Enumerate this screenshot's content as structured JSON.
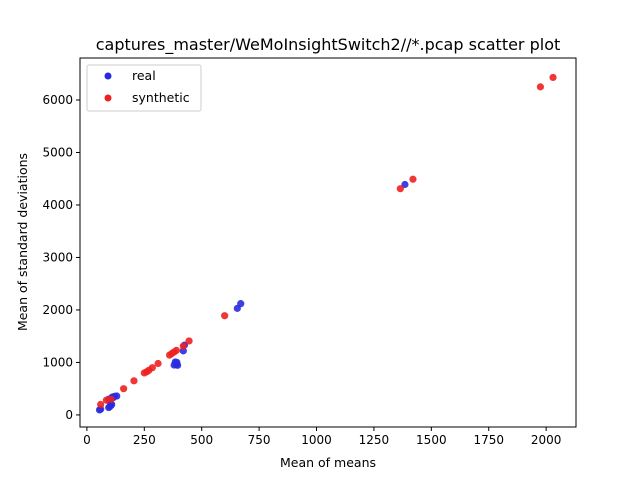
{
  "chart_data": {
    "type": "scatter",
    "title": "captures_master/WeMoInsightSwitch2//*.pcap scatter plot",
    "xlabel": "Mean of means",
    "ylabel": "Mean of standard deviations",
    "xlim": [
      -30,
      2130
    ],
    "ylim": [
      -230,
      6800
    ],
    "xticks": [
      0,
      250,
      500,
      750,
      1000,
      1250,
      1500,
      1750,
      2000
    ],
    "yticks": [
      0,
      1000,
      2000,
      3000,
      4000,
      5000,
      6000
    ],
    "grid": false,
    "legend_position": "top-left",
    "series": [
      {
        "name": "real",
        "color": "#2a2ae0",
        "points": [
          [
            55,
            95
          ],
          [
            60,
            110
          ],
          [
            95,
            140
          ],
          [
            100,
            160
          ],
          [
            105,
            180
          ],
          [
            108,
            200
          ],
          [
            100,
            260
          ],
          [
            95,
            300
          ],
          [
            110,
            340
          ],
          [
            115,
            330
          ],
          [
            120,
            355
          ],
          [
            130,
            360
          ],
          [
            380,
            950
          ],
          [
            390,
            960
          ],
          [
            395,
            945
          ],
          [
            385,
            1010
          ],
          [
            392,
            1000
          ],
          [
            420,
            1220
          ],
          [
            425,
            1330
          ],
          [
            655,
            2030
          ],
          [
            670,
            2120
          ],
          [
            1385,
            4390
          ]
        ]
      },
      {
        "name": "synthetic",
        "color": "#ee2020",
        "points": [
          [
            60,
            200
          ],
          [
            85,
            280
          ],
          [
            105,
            300
          ],
          [
            160,
            500
          ],
          [
            205,
            650
          ],
          [
            250,
            800
          ],
          [
            260,
            820
          ],
          [
            270,
            850
          ],
          [
            285,
            900
          ],
          [
            310,
            980
          ],
          [
            360,
            1140
          ],
          [
            370,
            1170
          ],
          [
            380,
            1200
          ],
          [
            390,
            1230
          ],
          [
            420,
            1310
          ],
          [
            445,
            1410
          ],
          [
            600,
            1890
          ],
          [
            1365,
            4310
          ],
          [
            1420,
            4490
          ],
          [
            1975,
            6250
          ],
          [
            2030,
            6430
          ]
        ]
      }
    ]
  }
}
